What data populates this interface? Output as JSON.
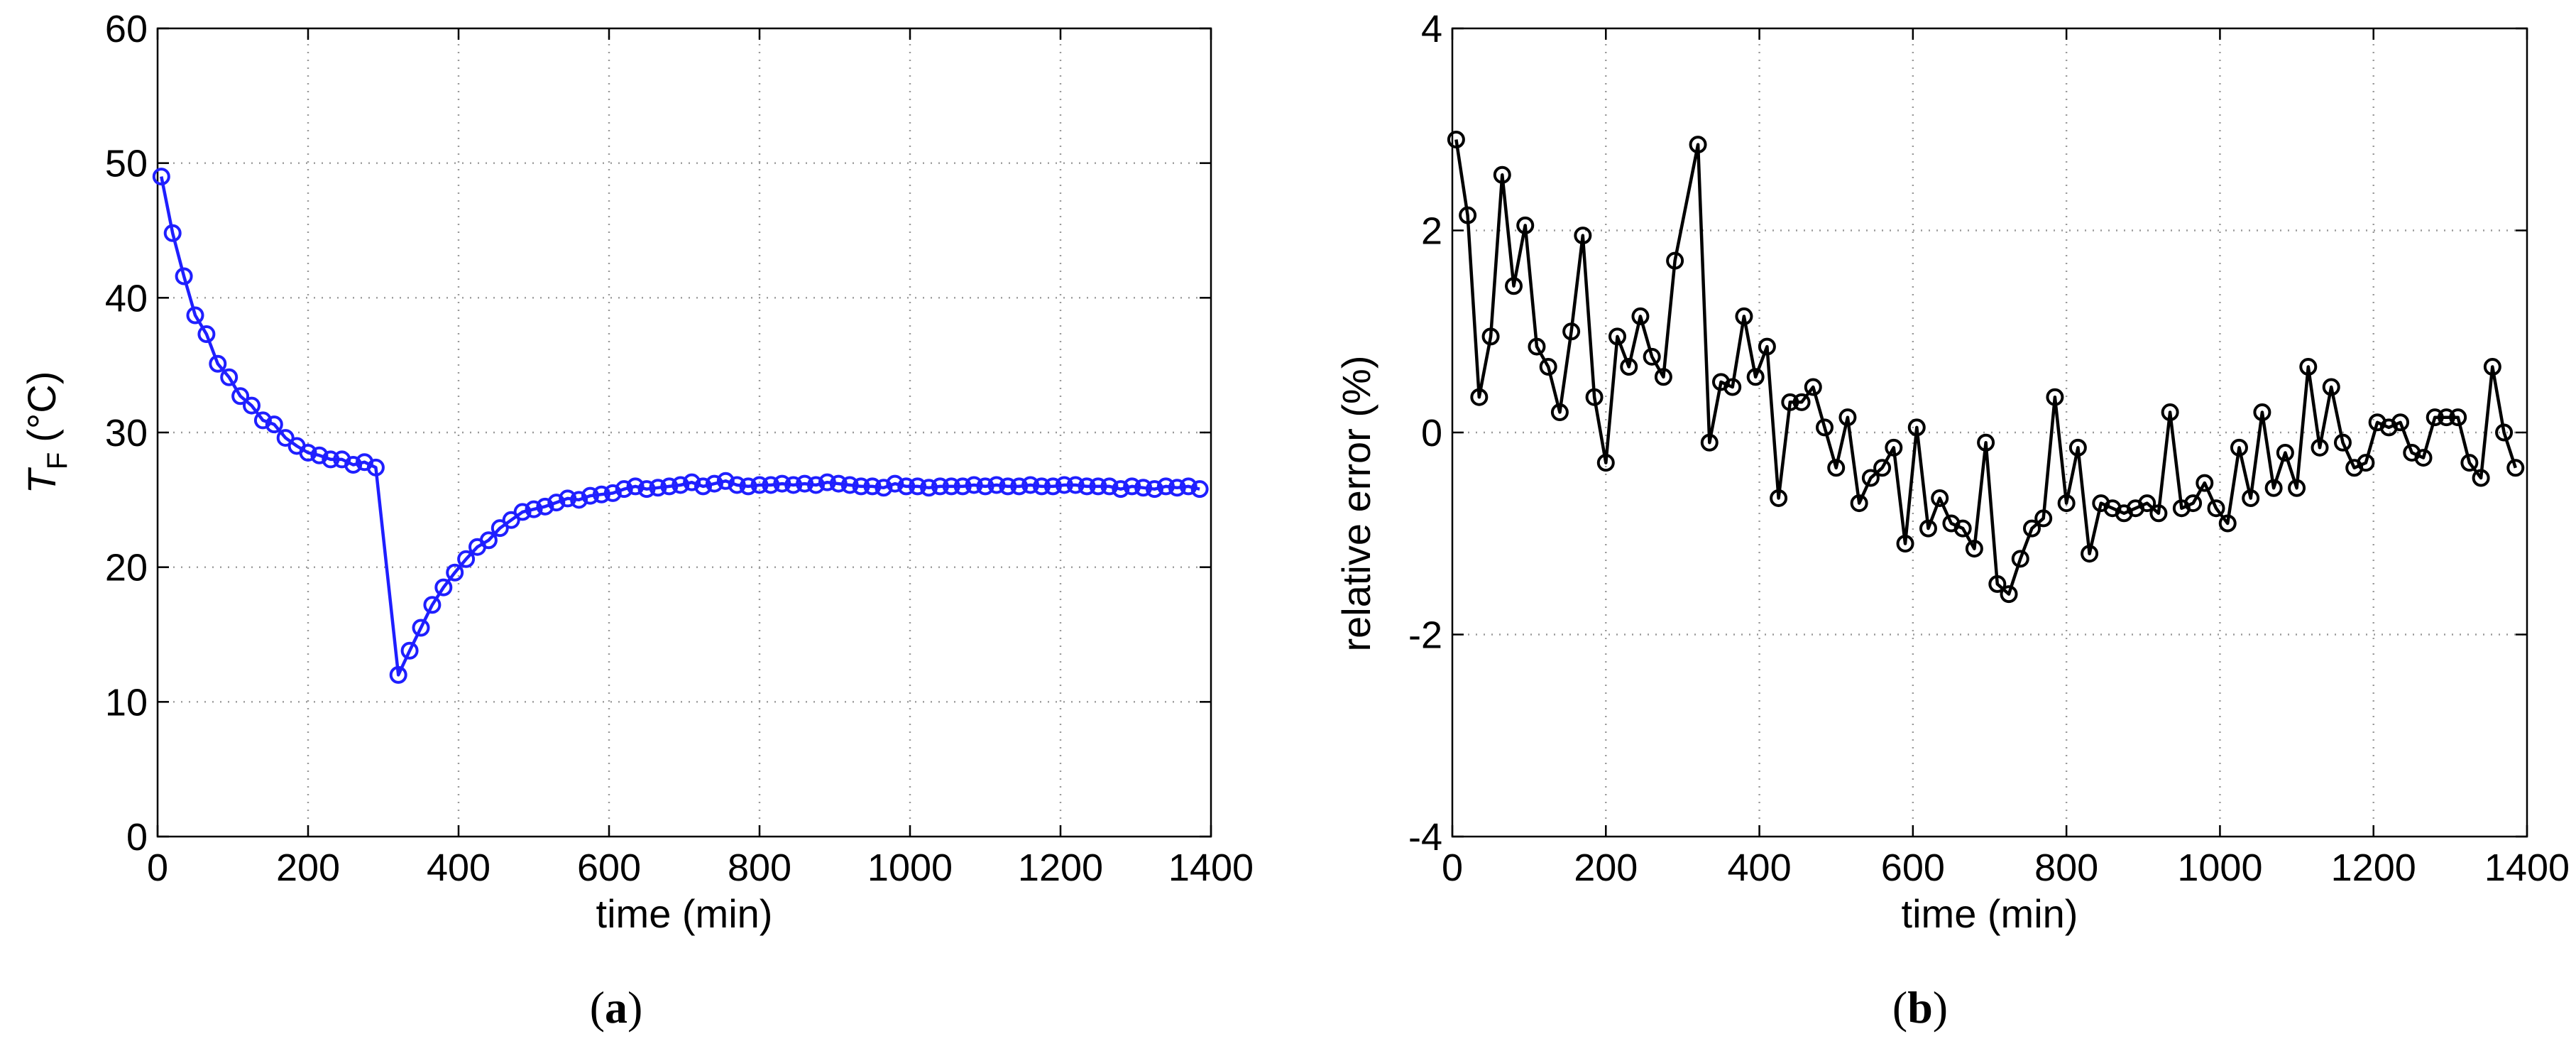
{
  "chart_data": [
    {
      "type": "line",
      "panel_label": "a",
      "title": "",
      "xlabel": "time (min)",
      "ylabel_main": "T",
      "ylabel_sub": "F",
      "ylabel_unit": "(°C)",
      "xlim": [
        0,
        1400
      ],
      "ylim": [
        0,
        60
      ],
      "xticks": [
        0,
        200,
        400,
        600,
        800,
        1000,
        1200,
        1400
      ],
      "yticks": [
        0,
        10,
        20,
        30,
        40,
        50,
        60
      ],
      "grid": true,
      "marker": "circle",
      "color": "#1f1fff",
      "series": [
        {
          "name": "T_F",
          "x": [
            5,
            20,
            35,
            50,
            65,
            80,
            95,
            110,
            125,
            140,
            155,
            170,
            185,
            200,
            215,
            230,
            245,
            260,
            275,
            290,
            320,
            335,
            350,
            365,
            380,
            395,
            410,
            425,
            440,
            455,
            470,
            485,
            500,
            515,
            530,
            545,
            560,
            575,
            590,
            605,
            620,
            635,
            650,
            665,
            680,
            695,
            710,
            725,
            740,
            755,
            770,
            785,
            800,
            815,
            830,
            845,
            860,
            875,
            890,
            905,
            920,
            935,
            950,
            965,
            980,
            995,
            1010,
            1025,
            1040,
            1055,
            1070,
            1085,
            1100,
            1115,
            1130,
            1145,
            1160,
            1175,
            1190,
            1205,
            1220,
            1235,
            1250,
            1265,
            1280,
            1295,
            1310,
            1325,
            1340,
            1355,
            1370,
            1385
          ],
          "y": [
            49,
            44.8,
            41.6,
            38.7,
            37.3,
            35.1,
            34.1,
            32.7,
            32,
            30.9,
            30.6,
            29.6,
            29,
            28.5,
            28.3,
            28,
            28,
            27.6,
            27.8,
            27.4,
            12,
            13.8,
            15.5,
            17.2,
            18.5,
            19.6,
            20.6,
            21.5,
            22,
            22.9,
            23.5,
            24.1,
            24.3,
            24.5,
            24.8,
            25.1,
            25,
            25.3,
            25.4,
            25.5,
            25.8,
            26,
            25.8,
            25.9,
            26,
            26.1,
            26.3,
            26,
            26.2,
            26.4,
            26.1,
            26,
            26.1,
            26.1,
            26.2,
            26.1,
            26.2,
            26.1,
            26.3,
            26.2,
            26.1,
            26,
            26,
            25.9,
            26.2,
            26,
            26,
            25.9,
            26,
            26,
            26,
            26.1,
            26,
            26.1,
            26,
            26,
            26.1,
            26,
            26,
            26.1,
            26.1,
            26,
            26,
            26,
            25.8,
            26,
            25.9,
            25.8,
            26,
            25.9,
            26,
            25.8
          ]
        }
      ]
    },
    {
      "type": "line",
      "panel_label": "b",
      "title": "",
      "xlabel": "time (min)",
      "ylabel": "relative error (%)",
      "xlim": [
        0,
        1400
      ],
      "ylim": [
        -4,
        4
      ],
      "xticks": [
        0,
        200,
        400,
        600,
        800,
        1000,
        1200,
        1400
      ],
      "yticks": [
        -4,
        -2,
        0,
        2,
        4
      ],
      "grid": true,
      "marker": "circle",
      "color": "#000000",
      "series": [
        {
          "name": "relative error",
          "x": [
            5,
            20,
            35,
            50,
            65,
            80,
            95,
            110,
            125,
            140,
            155,
            170,
            185,
            200,
            215,
            230,
            245,
            260,
            275,
            290,
            320,
            335,
            350,
            365,
            380,
            395,
            410,
            425,
            440,
            455,
            470,
            485,
            500,
            515,
            530,
            545,
            560,
            575,
            590,
            605,
            620,
            635,
            650,
            665,
            680,
            695,
            710,
            725,
            740,
            755,
            770,
            785,
            800,
            815,
            830,
            845,
            860,
            875,
            890,
            905,
            920,
            935,
            950,
            965,
            980,
            995,
            1010,
            1025,
            1040,
            1055,
            1070,
            1085,
            1100,
            1115,
            1130,
            1145,
            1160,
            1175,
            1190,
            1205,
            1220,
            1235,
            1250,
            1265,
            1280,
            1295,
            1310,
            1325,
            1340,
            1355,
            1370,
            1385
          ],
          "y": [
            2.9,
            2.15,
            0.35,
            0.95,
            2.55,
            1.45,
            2.05,
            0.85,
            0.65,
            0.2,
            1,
            1.95,
            0.35,
            -0.3,
            0.95,
            0.65,
            1.15,
            0.75,
            0.55,
            1.7,
            2.85,
            -0.1,
            0.5,
            0.45,
            1.15,
            0.55,
            0.85,
            -0.65,
            0.3,
            0.3,
            0.45,
            0.05,
            -0.35,
            0.15,
            -0.7,
            -0.45,
            -0.35,
            -0.15,
            -1.1,
            0.05,
            -0.95,
            -0.65,
            -0.9,
            -0.95,
            -1.15,
            -0.1,
            -1.5,
            -1.6,
            -1.25,
            -0.95,
            -0.85,
            0.35,
            -0.7,
            -0.15,
            -1.2,
            -0.7,
            -0.75,
            -0.8,
            -0.75,
            -0.7,
            -0.8,
            0.2,
            -0.75,
            -0.7,
            -0.5,
            -0.75,
            -0.9,
            -0.15,
            -0.65,
            0.2,
            -0.55,
            -0.2,
            -0.55,
            0.65,
            -0.15,
            0.45,
            -0.1,
            -0.35,
            -0.3,
            0.1,
            0.05,
            0.1,
            -0.2,
            -0.25,
            0.15,
            0.15,
            0.15,
            -0.3,
            -0.45,
            0.65,
            0,
            -0.35
          ]
        }
      ]
    }
  ]
}
